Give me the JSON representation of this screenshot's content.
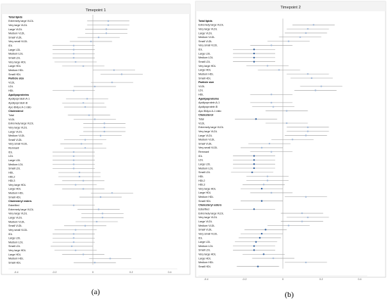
{
  "colors": {
    "frame": "#cfcfcf",
    "title_bar": "#f3f3f3",
    "ci_line": "#9a9a9a",
    "ref_line": "#aaaaaa",
    "point_light": "#9fb6d6",
    "point_dark": "#2f5f9e"
  },
  "panel_labels": [
    "(a)",
    "(b)"
  ],
  "chart_data": [
    {
      "type": "forest",
      "title": "Timepoint 1",
      "x_ticks": [
        -0.4,
        -0.2,
        0,
        0.2,
        0.4
      ],
      "xlim": [
        -0.44,
        0.44
      ],
      "reference_x": 0,
      "rows": [
        {
          "label": "Total lipids",
          "header": true
        },
        {
          "label": "Extremely large VLDL",
          "est": 0.08,
          "lo": -0.03,
          "hi": 0.19
        },
        {
          "label": "Very large VLDL",
          "est": 0.08,
          "lo": -0.03,
          "hi": 0.19
        },
        {
          "label": "Large VLDL",
          "est": 0.07,
          "lo": -0.04,
          "hi": 0.18
        },
        {
          "label": "Medium VLDL",
          "est": 0.07,
          "lo": -0.04,
          "hi": 0.18
        },
        {
          "label": "Small VLDL",
          "est": 0.03,
          "lo": -0.08,
          "hi": 0.14
        },
        {
          "label": "Very small VLDL",
          "est": -0.01,
          "lo": -0.12,
          "hi": 0.1
        },
        {
          "label": "IDL",
          "est": -0.1,
          "lo": -0.21,
          "hi": 0.01
        },
        {
          "label": "Large LDL",
          "est": -0.1,
          "lo": -0.21,
          "hi": 0.01
        },
        {
          "label": "Medium LDL",
          "est": -0.1,
          "lo": -0.21,
          "hi": 0.01
        },
        {
          "label": "Small LDL",
          "est": -0.1,
          "lo": -0.21,
          "hi": 0.01
        },
        {
          "label": "Very large HDL",
          "est": -0.09,
          "lo": -0.2,
          "hi": 0.02
        },
        {
          "label": "Large HDL",
          "est": -0.05,
          "lo": -0.16,
          "hi": 0.06
        },
        {
          "label": "Medium HDL",
          "est": 0.11,
          "lo": 0,
          "hi": 0.22
        },
        {
          "label": "Small HDL",
          "est": 0.15,
          "lo": 0.04,
          "hi": 0.26
        },
        {
          "label": "Particle size",
          "header": true
        },
        {
          "label": "VLDL",
          "est": 0.1,
          "lo": -0.01,
          "hi": 0.21
        },
        {
          "label": "LDL",
          "est": 0.01,
          "lo": -0.1,
          "hi": 0.12
        },
        {
          "label": "HDL",
          "est": -0.1,
          "lo": -0.21,
          "hi": 0.01
        },
        {
          "label": "Apolipoproteins",
          "header": true
        },
        {
          "label": "Apolipoprotein A-1",
          "est": -0.03,
          "lo": -0.14,
          "hi": 0.08
        },
        {
          "label": "Apolipoprotein B",
          "est": -0.05,
          "lo": -0.16,
          "hi": 0.06
        },
        {
          "label": "Apo B/Apo A-1 ratio",
          "est": -0.04,
          "lo": -0.15,
          "hi": 0.07
        },
        {
          "label": "Cholesterol",
          "header": true
        },
        {
          "label": "Total",
          "est": -0.02,
          "lo": -0.13,
          "hi": 0.09
        },
        {
          "label": "VLDL",
          "est": 0.01,
          "lo": -0.1,
          "hi": 0.12
        },
        {
          "label": "Extremely large VLDL",
          "est": 0.06,
          "lo": -0.05,
          "hi": 0.17
        },
        {
          "label": "Very large VLDL",
          "est": 0.06,
          "lo": -0.05,
          "hi": 0.17
        },
        {
          "label": "Large VLDL",
          "est": 0.06,
          "lo": -0.05,
          "hi": 0.17
        },
        {
          "label": "Medium VLDL",
          "est": 0.04,
          "lo": -0.07,
          "hi": 0.15
        },
        {
          "label": "Small VLDL",
          "est": -0.04,
          "lo": -0.15,
          "hi": 0.07
        },
        {
          "label": "Very small VLDL",
          "est": -0.06,
          "lo": -0.17,
          "hi": 0.05
        },
        {
          "label": "Remnant",
          "est": -0.04,
          "lo": -0.15,
          "hi": 0.07
        },
        {
          "label": "IDL",
          "est": -0.1,
          "lo": -0.21,
          "hi": 0.01
        },
        {
          "label": "LDL",
          "est": -0.1,
          "lo": -0.21,
          "hi": 0.01
        },
        {
          "label": "Large LDL",
          "est": -0.1,
          "lo": -0.21,
          "hi": 0.01
        },
        {
          "label": "Medium LDL",
          "est": -0.1,
          "lo": -0.21,
          "hi": 0.01
        },
        {
          "label": "Small LDL",
          "est": -0.1,
          "lo": -0.21,
          "hi": 0.01
        },
        {
          "label": "HDL",
          "est": -0.07,
          "lo": -0.18,
          "hi": 0.04
        },
        {
          "label": "HDL2",
          "est": -0.07,
          "lo": -0.18,
          "hi": 0.04
        },
        {
          "label": "HDL3",
          "est": -0.05,
          "lo": -0.16,
          "hi": 0.06
        },
        {
          "label": "Very large HDL",
          "est": -0.09,
          "lo": -0.2,
          "hi": 0.02
        },
        {
          "label": "Large HDL",
          "est": -0.05,
          "lo": -0.16,
          "hi": 0.06
        },
        {
          "label": "Medium HDL",
          "est": 0.1,
          "lo": -0.01,
          "hi": 0.21
        },
        {
          "label": "Small HDL",
          "est": 0.04,
          "lo": -0.07,
          "hi": 0.15
        },
        {
          "label": "Cholesteryl esters",
          "header": true
        },
        {
          "label": "Esterified",
          "est": -0.1,
          "lo": -0.21,
          "hi": 0.01
        },
        {
          "label": "Extremely large VLDL",
          "est": 0.03,
          "lo": -0.08,
          "hi": 0.14
        },
        {
          "label": "Very large VLDL",
          "est": 0.05,
          "lo": -0.06,
          "hi": 0.16
        },
        {
          "label": "Large VLDL",
          "est": 0.05,
          "lo": -0.06,
          "hi": 0.16
        },
        {
          "label": "Medium VLDL",
          "est": 0.02,
          "lo": -0.09,
          "hi": 0.13
        },
        {
          "label": "Small VLDL",
          "est": -0.04,
          "lo": -0.15,
          "hi": 0.07
        },
        {
          "label": "Very small VLDL",
          "est": -0.09,
          "lo": -0.2,
          "hi": 0.02
        },
        {
          "label": "IDL",
          "est": -0.1,
          "lo": -0.21,
          "hi": 0.01
        },
        {
          "label": "Large LDL",
          "est": -0.1,
          "lo": -0.21,
          "hi": 0.01
        },
        {
          "label": "Medium LDL",
          "est": -0.1,
          "lo": -0.21,
          "hi": 0.01
        },
        {
          "label": "Small LDL",
          "est": -0.11,
          "lo": -0.22,
          "hi": 0
        },
        {
          "label": "Very large HDL",
          "est": -0.09,
          "lo": -0.2,
          "hi": 0.02
        },
        {
          "label": "Large HDL",
          "est": -0.05,
          "lo": -0.16,
          "hi": 0.06
        },
        {
          "label": "Medium HDL",
          "est": 0.09,
          "lo": -0.02,
          "hi": 0.2
        },
        {
          "label": "Small HDL",
          "est": 0.01,
          "lo": -0.1,
          "hi": 0.12
        }
      ]
    },
    {
      "type": "forest",
      "title": "Timepoint 2",
      "x_ticks": [
        -0.4,
        -0.2,
        0,
        0.2,
        0.4
      ],
      "xlim": [
        -0.44,
        0.44
      ],
      "reference_x": 0,
      "rows": [
        {
          "label": "Total lipids",
          "header": true
        },
        {
          "label": "Extremely large VLDL",
          "est": 0.16,
          "lo": 0.05,
          "hi": 0.27
        },
        {
          "label": "Very large VLDL",
          "est": 0.13,
          "lo": 0.02,
          "hi": 0.24
        },
        {
          "label": "Large VLDL",
          "est": 0.12,
          "lo": 0.01,
          "hi": 0.23
        },
        {
          "label": "Medium VLDL",
          "est": 0.09,
          "lo": -0.02,
          "hi": 0.2
        },
        {
          "label": "Small VLDL",
          "est": 0.03,
          "lo": -0.08,
          "hi": 0.14
        },
        {
          "label": "Very small VLDL",
          "est": -0.06,
          "lo": -0.17,
          "hi": 0.05
        },
        {
          "label": "IDL",
          "est": -0.15,
          "lo": -0.26,
          "hi": -0.04,
          "sig": true
        },
        {
          "label": "Large LDL",
          "est": -0.15,
          "lo": -0.26,
          "hi": -0.04,
          "sig": true
        },
        {
          "label": "Medium LDL",
          "est": -0.15,
          "lo": -0.26,
          "hi": -0.04,
          "sig": true
        },
        {
          "label": "Small LDL",
          "est": -0.15,
          "lo": -0.26,
          "hi": -0.04,
          "sig": true
        },
        {
          "label": "Very large HDL",
          "est": -0.08,
          "lo": -0.19,
          "hi": 0.03
        },
        {
          "label": "Large HDL",
          "est": -0.02,
          "lo": -0.13,
          "hi": 0.09
        },
        {
          "label": "Medium HDL",
          "est": 0.13,
          "lo": 0.02,
          "hi": 0.24
        },
        {
          "label": "Small HDL",
          "est": 0.15,
          "lo": 0.04,
          "hi": 0.26
        },
        {
          "label": "Particle size",
          "header": true
        },
        {
          "label": "VLDL",
          "est": 0.2,
          "lo": 0.09,
          "hi": 0.31
        },
        {
          "label": "LDL",
          "est": 0.17,
          "lo": 0.06,
          "hi": 0.28
        },
        {
          "label": "HDL",
          "est": -0.06,
          "lo": -0.17,
          "hi": 0.05
        },
        {
          "label": "Apolipoproteins",
          "header": true
        },
        {
          "label": "Apolipoprotein A-1",
          "est": -0.06,
          "lo": -0.17,
          "hi": 0.05
        },
        {
          "label": "Apolipoprotein B",
          "est": -0.05,
          "lo": -0.16,
          "hi": 0.06
        },
        {
          "label": "Apo B/Apo A-1 ratio",
          "est": 0.02,
          "lo": -0.09,
          "hi": 0.13
        },
        {
          "label": "Cholesterol",
          "header": true
        },
        {
          "label": "Total",
          "est": -0.14,
          "lo": -0.25,
          "hi": -0.03,
          "sig": true
        },
        {
          "label": "VLDL",
          "est": 0.02,
          "lo": -0.09,
          "hi": 0.13
        },
        {
          "label": "Extremely large VLDL",
          "est": 0.13,
          "lo": 0.02,
          "hi": 0.24
        },
        {
          "label": "Very large VLDL",
          "est": 0.13,
          "lo": 0.02,
          "hi": 0.24
        },
        {
          "label": "Large VLDL",
          "est": 0.12,
          "lo": 0.01,
          "hi": 0.23
        },
        {
          "label": "Medium VLDL",
          "est": 0.05,
          "lo": -0.06,
          "hi": 0.16
        },
        {
          "label": "Small VLDL",
          "est": -0.07,
          "lo": -0.18,
          "hi": 0.04
        },
        {
          "label": "Very small VLDL",
          "est": -0.11,
          "lo": -0.22,
          "hi": 0
        },
        {
          "label": "Remnant",
          "est": -0.06,
          "lo": -0.17,
          "hi": 0.05
        },
        {
          "label": "IDL",
          "est": -0.15,
          "lo": -0.26,
          "hi": -0.04,
          "sig": true
        },
        {
          "label": "LDL",
          "est": -0.15,
          "lo": -0.26,
          "hi": -0.04,
          "sig": true
        },
        {
          "label": "Large LDL",
          "est": -0.15,
          "lo": -0.26,
          "hi": -0.04,
          "sig": true
        },
        {
          "label": "Medium LDL",
          "est": -0.15,
          "lo": -0.26,
          "hi": -0.04,
          "sig": true
        },
        {
          "label": "Small LDL",
          "est": -0.16,
          "lo": -0.27,
          "hi": -0.05,
          "sig": true
        },
        {
          "label": "HDL",
          "est": -0.08,
          "lo": -0.19,
          "hi": 0.03
        },
        {
          "label": "HDL2",
          "est": -0.08,
          "lo": -0.19,
          "hi": 0.03
        },
        {
          "label": "HDL3",
          "est": -0.1,
          "lo": -0.21,
          "hi": 0.01
        },
        {
          "label": "Very large HDL",
          "est": -0.11,
          "lo": -0.22,
          "hi": 0,
          "sig": true
        },
        {
          "label": "Large HDL",
          "est": -0.06,
          "lo": -0.17,
          "hi": 0.05
        },
        {
          "label": "Medium HDL",
          "est": 0.12,
          "lo": 0.01,
          "hi": 0.23
        },
        {
          "label": "Small HDL",
          "est": -0.11,
          "lo": -0.22,
          "hi": 0,
          "sig": true
        },
        {
          "label": "Cholesteryl esters",
          "header": true
        },
        {
          "label": "Esterified",
          "est": -0.15,
          "lo": -0.26,
          "hi": -0.04,
          "sig": true
        },
        {
          "label": "Extremely large VLDL",
          "est": 0.1,
          "lo": -0.01,
          "hi": 0.21
        },
        {
          "label": "Very large VLDL",
          "est": 0.13,
          "lo": 0.02,
          "hi": 0.24
        },
        {
          "label": "Large VLDL",
          "est": 0.1,
          "lo": -0.01,
          "hi": 0.21
        },
        {
          "label": "Medium VLDL",
          "est": 0.03,
          "lo": -0.08,
          "hi": 0.14
        },
        {
          "label": "Small VLDL",
          "est": -0.09,
          "lo": -0.2,
          "hi": 0.02,
          "sig": true
        },
        {
          "label": "Very small VLDL",
          "est": -0.11,
          "lo": -0.22,
          "hi": 0,
          "sig": true
        },
        {
          "label": "IDL",
          "est": -0.12,
          "lo": -0.23,
          "hi": -0.01,
          "sig": true
        },
        {
          "label": "Large LDL",
          "est": -0.14,
          "lo": -0.25,
          "hi": -0.03,
          "sig": true
        },
        {
          "label": "Medium LDL",
          "est": -0.15,
          "lo": -0.26,
          "hi": -0.04,
          "sig": true
        },
        {
          "label": "Small LDL",
          "est": -0.15,
          "lo": -0.26,
          "hi": -0.04,
          "sig": true
        },
        {
          "label": "Very large HDL",
          "est": -0.1,
          "lo": -0.21,
          "hi": 0.01,
          "sig": true
        },
        {
          "label": "Large HDL",
          "est": -0.05,
          "lo": -0.16,
          "hi": 0.06
        },
        {
          "label": "Medium HDL",
          "est": 0.12,
          "lo": 0.01,
          "hi": 0.23
        },
        {
          "label": "Small HDL",
          "est": -0.13,
          "lo": -0.24,
          "hi": -0.02,
          "sig": true
        }
      ]
    }
  ]
}
